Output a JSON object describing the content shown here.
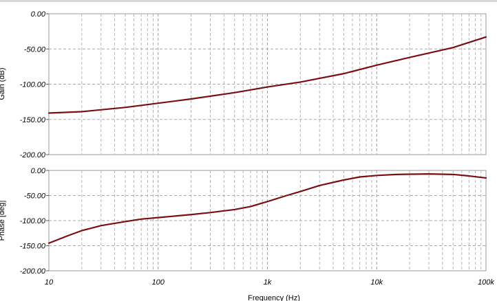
{
  "chart_data": [
    {
      "type": "line",
      "xscale": "log",
      "xlim": [
        10,
        100000
      ],
      "ylim": [
        -200,
        0
      ],
      "yticks": [
        0,
        -50,
        -100,
        -150,
        -200
      ],
      "ytick_labels": [
        "0.00",
        "-50.00",
        "-100.00",
        "-150.00",
        "-200.00"
      ],
      "ylabel": "Gain (dB)",
      "series_color": "#7a0f12",
      "series": [
        {
          "x": [
            10,
            20,
            50,
            100,
            200,
            500,
            1000,
            2000,
            5000,
            10000,
            20000,
            50000,
            100000
          ],
          "y": [
            -141,
            -139,
            -133,
            -127,
            -121,
            -112,
            -104,
            -97,
            -85,
            -73,
            -62,
            -48,
            -33
          ]
        }
      ]
    },
    {
      "type": "line",
      "xscale": "log",
      "xlim": [
        10,
        100000
      ],
      "ylim": [
        -200,
        0
      ],
      "yticks": [
        0,
        -50,
        -100,
        -150,
        -200
      ],
      "ytick_labels": [
        "0.00",
        "-50.00",
        "-100.00",
        "-150.00",
        "-200.00"
      ],
      "ylabel": "Phase [deg]",
      "xlabel": "Frequency (Hz)",
      "xticks": [
        10,
        100,
        1000,
        10000,
        100000
      ],
      "xtick_labels": [
        "10",
        "100",
        "1k",
        "10k",
        "100k"
      ],
      "series_color": "#7a0f12",
      "series": [
        {
          "x": [
            10,
            15,
            20,
            30,
            50,
            70,
            100,
            200,
            300,
            500,
            700,
            1000,
            1500,
            2000,
            3000,
            5000,
            7000,
            10000,
            15000,
            20000,
            30000,
            50000,
            70000,
            100000
          ],
          "y": [
            -145,
            -130,
            -120,
            -110,
            -102,
            -97,
            -94,
            -88,
            -84,
            -78,
            -72,
            -62,
            -50,
            -42,
            -30,
            -19,
            -13,
            -10,
            -8,
            -7.5,
            -7,
            -8,
            -11,
            -15
          ]
        }
      ]
    }
  ]
}
